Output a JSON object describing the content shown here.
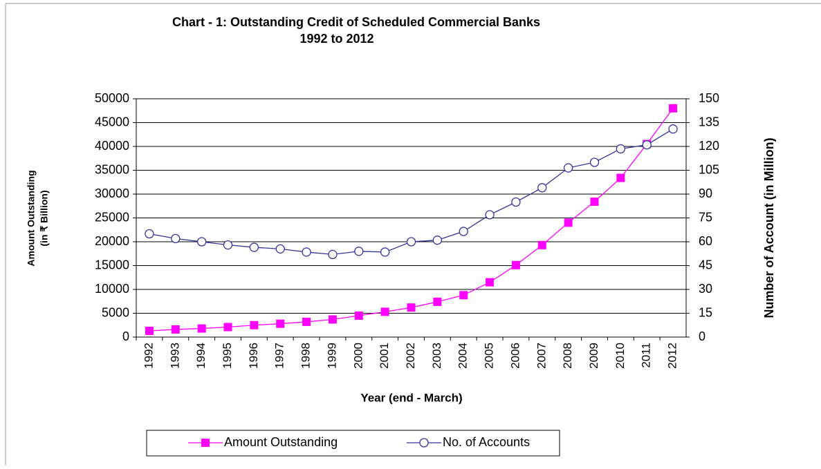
{
  "chart_data": {
    "type": "line",
    "title": [
      "Chart - 1:   Outstanding  Credit of Scheduled Commercial Banks",
      "1992 to 2012"
    ],
    "xlabel": "Year (end - March)",
    "ylabel": [
      "Amount Outstanding",
      "(in ₹ Billion)"
    ],
    "y2label": "Number of Account  (in Million)",
    "categories": [
      "1992",
      "1993",
      "1994",
      "1995",
      "1996",
      "1997",
      "1998",
      "1999",
      "2000",
      "2001",
      "2002",
      "2003",
      "2004",
      "2005",
      "2006",
      "2007",
      "2008",
      "2009",
      "2010",
      "2011",
      "2012"
    ],
    "series": [
      {
        "name": "Amount Outstanding",
        "color": "#ff00ff",
        "marker": "square",
        "values": [
          1300,
          1600,
          1800,
          2100,
          2500,
          2800,
          3200,
          3700,
          4500,
          5300,
          6200,
          7400,
          8800,
          11500,
          15100,
          19300,
          24000,
          28400,
          33400,
          40500,
          48000
        ]
      },
      {
        "name": "No. of Accounts",
        "color": "#333399",
        "marker": "circle",
        "axis": "y2",
        "values": [
          65,
          62,
          60,
          58,
          56.5,
          55.5,
          53.5,
          52,
          54,
          53.5,
          60,
          61,
          66.5,
          77,
          85,
          94,
          106.5,
          110,
          118.5,
          121,
          131
        ]
      }
    ],
    "ylim": [
      0,
      50000
    ],
    "yticks": [
      0,
      5000,
      10000,
      15000,
      20000,
      25000,
      30000,
      35000,
      40000,
      45000,
      50000
    ],
    "y2lim": [
      0,
      150
    ],
    "y2ticks": [
      0,
      15,
      30,
      45,
      60,
      75,
      90,
      105,
      120,
      135,
      150
    ],
    "grid": true
  }
}
